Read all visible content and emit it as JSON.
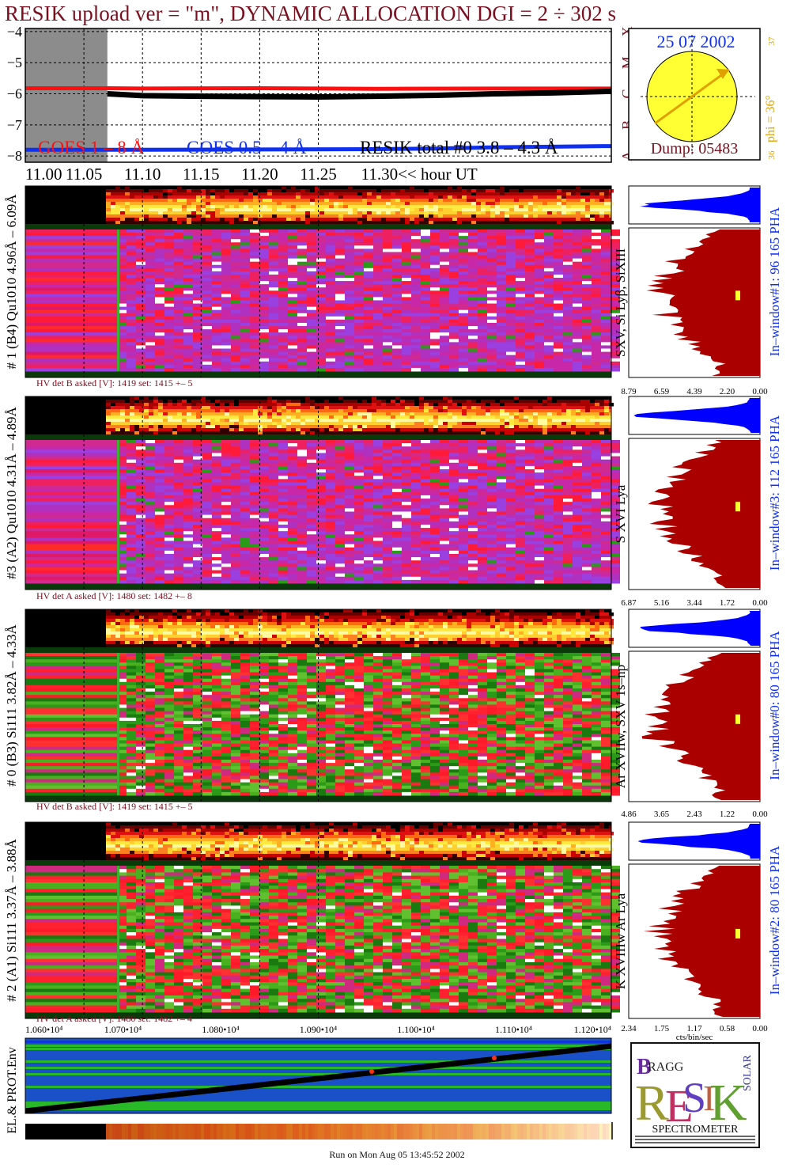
{
  "title": "RESIK upload ver = \"m\", DYNAMIC ALLOCATION  DGI =   2 ÷ 302 s",
  "footer": "Run on Mon Aug 05 13:45:52 2002",
  "colors": {
    "title": "#7a1020",
    "goes_red": "#ff1010",
    "goes_blue": "#1030f0",
    "resik": "#000000",
    "sun": "#ffff33",
    "phi": "#e0a000",
    "pha_blue": "#0000ff",
    "spectrum_red": "#aa0000"
  },
  "chart_data": [
    {
      "type": "line",
      "title": "",
      "xlabel": "hour UT",
      "x_ticks": [
        "11.00",
        "11.05",
        "11.10",
        "11.15",
        "11.20",
        "11.25",
        "11.30"
      ],
      "x_tick_label_last": "11.30<< hour UT",
      "xlim": [
        11.0,
        11.5
      ],
      "y_ticks": [
        "-4",
        "-5",
        "-6",
        "-7",
        "-8"
      ],
      "ylim": [
        -8.2,
        -3.9
      ],
      "grid": true,
      "side_labels": [
        "X",
        "M",
        "C",
        "B",
        "A"
      ],
      "legend": [
        "GOES 1 – 8 Å",
        "GOES 0.5 – 4 Å",
        "RESIK total #0  3.8 – 4.3 Å"
      ],
      "shaded_interval": [
        11.0,
        11.07
      ],
      "series": [
        {
          "name": "GOES 1 – 8 Å",
          "color": "#ff1010",
          "x": [
            11.0,
            11.07,
            11.1,
            11.2,
            11.3,
            11.4,
            11.5
          ],
          "values": [
            -5.82,
            -5.82,
            -5.83,
            -5.82,
            -5.84,
            -5.83,
            -5.83
          ]
        },
        {
          "name": "GOES 0.5 – 4 Å",
          "color": "#1030f0",
          "x": [
            11.0,
            11.07,
            11.1,
            11.2,
            11.3,
            11.35,
            11.4,
            11.45,
            11.5
          ],
          "values": [
            -7.8,
            -7.8,
            -7.8,
            -7.79,
            -7.78,
            -7.76,
            -7.72,
            -7.7,
            -7.68
          ]
        },
        {
          "name": "RESIK total #0  3.8 – 4.3 Å",
          "color": "#000000",
          "x": [
            11.07,
            11.1,
            11.15,
            11.2,
            11.25,
            11.3,
            11.35,
            11.4,
            11.45,
            11.5
          ],
          "values": [
            -6.0,
            -6.06,
            -6.08,
            -6.09,
            -6.1,
            -6.08,
            -6.05,
            -6.0,
            -5.97,
            -5.92
          ]
        }
      ]
    },
    {
      "type": "table",
      "title": "Sun",
      "date": "25 07 2002",
      "dump": "Dump: 05483",
      "phi": "phi = 36°",
      "phi_top": "37",
      "phi_bottom": "36",
      "phi_degrees": 36
    },
    {
      "type": "heatmap",
      "panels": [
        {
          "id": "p1",
          "left_label": "# 1 (B4) Qu1010 4.96Å – 6.09Å",
          "right_label": "SXV, Si Lyβ, SiXIII",
          "window_label": "In–window#1:  96 165 PHA",
          "hv": "HV det B asked [V]:  1419 set:  1415 +–  5",
          "x_ticks": [
            "8.79",
            "6.59",
            "4.39",
            "2.20",
            "0.00"
          ],
          "seed": 11
        },
        {
          "id": "p3",
          "left_label": "#3 (A2) Qu1010 4.31Å – 4.89Å",
          "right_label": "S XVI Lya",
          "window_label": "In–window#3:  112 165 PHA",
          "hv": "HV det A asked [V]:  1480 set:  1482 +–  8",
          "x_ticks": [
            "6.87",
            "5.16",
            "3.44",
            "1.72",
            "0.00"
          ],
          "seed": 23
        },
        {
          "id": "p0",
          "left_label": "# 0 (B3) Si111  3.82Å – 4.33Å",
          "right_label": "Ar XVIIw, SXV 1s–np",
          "window_label": "In–window#0:  80 165 PHA",
          "hv": "HV det B asked [V]:  1419 set:  1415 +–  5",
          "x_ticks": [
            "4.86",
            "3.65",
            "2.43",
            "1.22",
            "0.00"
          ],
          "seed": 37
        },
        {
          "id": "p2",
          "left_label": "# 2 (A1) Si111  3.37Å – 3.88Å",
          "right_label": "K XVIIIw  Ar Lya",
          "window_label": "In–window#2:  80 165 PHA",
          "hv": "HV det A asked [V]:  1480 set:  1482 +–  4",
          "x_ticks": [
            "2.34",
            "1.75",
            "1.17",
            "0.58",
            "0.00"
          ],
          "xlabel": "cts/bin/sec",
          "seed": 51
        }
      ],
      "bottom_axis_ticks": [
        "1.060•10⁴",
        "1.070•10⁴",
        "1.080•10⁴",
        "1.090•10⁴",
        "1.100•10⁴",
        "1.110•10⁴",
        "1.120•10⁴"
      ],
      "env_label": "EL.& PROT.Env"
    }
  ],
  "logo": {
    "letters": "RESIK",
    "top": "BRAGG",
    "side": "SOLAR",
    "bottom": "SPECTROMETER"
  }
}
